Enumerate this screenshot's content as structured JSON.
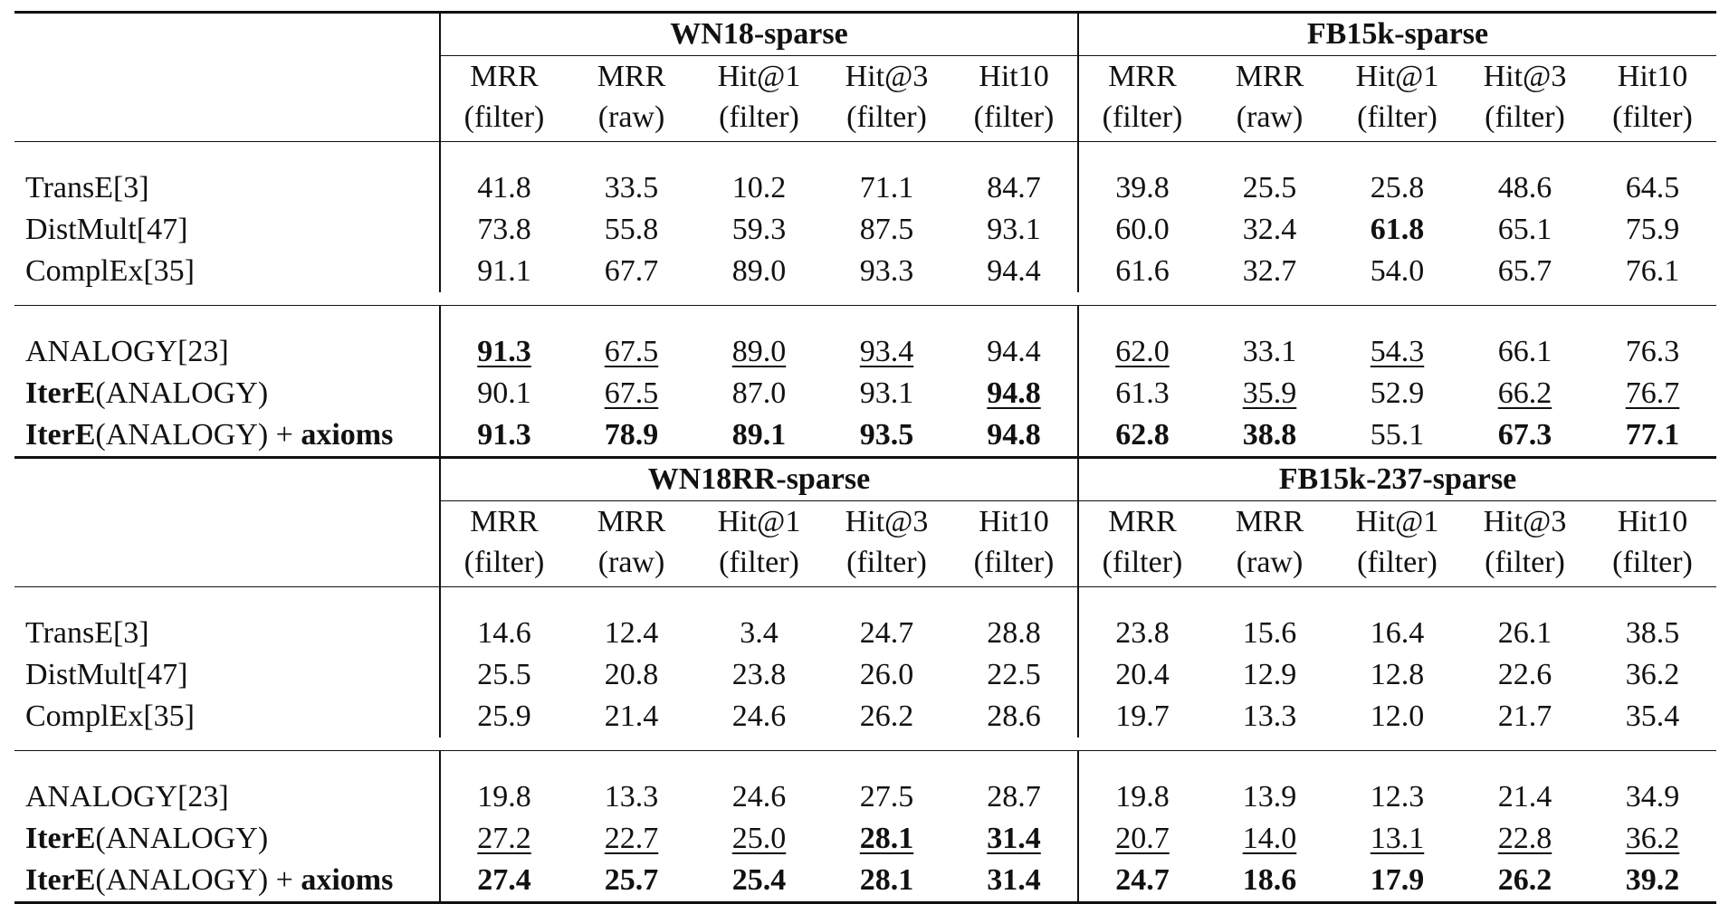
{
  "tables": [
    {
      "group_left": "WN18-sparse",
      "group_right": "FB15k-sparse",
      "columns": [
        {
          "metric": "MRR",
          "setting": "(filter)"
        },
        {
          "metric": "MRR",
          "setting": "(raw)"
        },
        {
          "metric": "Hit@1",
          "setting": "(filter)"
        },
        {
          "metric": "Hit@3",
          "setting": "(filter)"
        },
        {
          "metric": "Hit10",
          "setting": "(filter)"
        },
        {
          "metric": "MRR",
          "setting": "(filter)"
        },
        {
          "metric": "MRR",
          "setting": "(raw)"
        },
        {
          "metric": "Hit@1",
          "setting": "(filter)"
        },
        {
          "metric": "Hit@3",
          "setting": "(filter)"
        },
        {
          "metric": "Hit10",
          "setting": "(filter)"
        }
      ],
      "rows": [
        {
          "method": "TransE[3]",
          "values": [
            "41.8",
            "33.5",
            "10.2",
            "71.1",
            "84.7",
            "39.8",
            "25.5",
            "25.8",
            "48.6",
            "64.5"
          ]
        },
        {
          "method": "DistMult[47]",
          "values": [
            "73.8",
            "55.8",
            "59.3",
            "87.5",
            "93.1",
            "60.0",
            "32.4",
            "61.8",
            "65.1",
            "75.9"
          ]
        },
        {
          "method": "ComplEx[35]",
          "values": [
            "91.1",
            "67.7",
            "89.0",
            "93.3",
            "94.4",
            "61.6",
            "32.7",
            "54.0",
            "65.7",
            "76.1"
          ]
        },
        {
          "method": "ANALOGY[23]",
          "values": [
            "91.3",
            "67.5",
            "89.0",
            "93.4",
            "94.4",
            "62.0",
            "33.1",
            "54.3",
            "66.1",
            "76.3"
          ]
        },
        {
          "method_bold": "IterE",
          "method_rest": "(ANALOGY)",
          "values": [
            "90.1",
            "67.5",
            "87.0",
            "93.1",
            "94.8",
            "61.3",
            "35.9",
            "52.9",
            "66.2",
            "76.7"
          ]
        },
        {
          "method_bold": "IterE",
          "method_rest": "(ANALOGY) + ",
          "method_bold2": "axioms",
          "values": [
            "91.3",
            "78.9",
            "89.1",
            "93.5",
            "94.8",
            "62.8",
            "38.8",
            "55.1",
            "67.3",
            "77.1"
          ]
        }
      ]
    },
    {
      "group_left": "WN18RR-sparse",
      "group_right": "FB15k-237-sparse",
      "columns": [
        {
          "metric": "MRR",
          "setting": "(filter)"
        },
        {
          "metric": "MRR",
          "setting": "(raw)"
        },
        {
          "metric": "Hit@1",
          "setting": "(filter)"
        },
        {
          "metric": "Hit@3",
          "setting": "(filter)"
        },
        {
          "metric": "Hit10",
          "setting": "(filter)"
        },
        {
          "metric": "MRR",
          "setting": "(filter)"
        },
        {
          "metric": "MRR",
          "setting": "(raw)"
        },
        {
          "metric": "Hit@1",
          "setting": "(filter)"
        },
        {
          "metric": "Hit@3",
          "setting": "(filter)"
        },
        {
          "metric": "Hit10",
          "setting": "(filter)"
        }
      ],
      "rows": [
        {
          "method": "TransE[3]",
          "values": [
            "14.6",
            "12.4",
            "3.4",
            "24.7",
            "28.8",
            "23.8",
            "15.6",
            "16.4",
            "26.1",
            "38.5"
          ]
        },
        {
          "method": "DistMult[47]",
          "values": [
            "25.5",
            "20.8",
            "23.8",
            "26.0",
            "22.5",
            "20.4",
            "12.9",
            "12.8",
            "22.6",
            "36.2"
          ]
        },
        {
          "method": "ComplEx[35]",
          "values": [
            "25.9",
            "21.4",
            "24.6",
            "26.2",
            "28.6",
            "19.7",
            "13.3",
            "12.0",
            "21.7",
            "35.4"
          ]
        },
        {
          "method": "ANALOGY[23]",
          "values": [
            "19.8",
            "13.3",
            "24.6",
            "27.5",
            "28.7",
            "19.8",
            "13.9",
            "12.3",
            "21.4",
            "34.9"
          ]
        },
        {
          "method_bold": "IterE",
          "method_rest": "(ANALOGY)",
          "values": [
            "27.2",
            "22.7",
            "25.0",
            "28.1",
            "31.4",
            "20.7",
            "14.0",
            "13.1",
            "22.8",
            "36.2"
          ]
        },
        {
          "method_bold": "IterE",
          "method_rest": "(ANALOGY) + ",
          "method_bold2": "axioms",
          "values": [
            "27.4",
            "25.7",
            "25.4",
            "28.1",
            "31.4",
            "24.7",
            "18.6",
            "17.9",
            "26.2",
            "39.2"
          ]
        }
      ]
    }
  ],
  "emphasis": {
    "bold": [
      "0.3.0",
      "0.4.4",
      "0.5.0",
      "0.5.1",
      "0.5.2",
      "0.5.3",
      "0.5.4",
      "0.5.5",
      "0.5.6",
      "0.5.8",
      "0.5.9",
      "0.1.7",
      "1.4.3",
      "1.4.4",
      "1.5.0",
      "1.5.1",
      "1.5.2",
      "1.5.3",
      "1.5.4",
      "1.5.5",
      "1.5.6",
      "1.5.7",
      "1.5.8",
      "1.5.9"
    ],
    "underline": [
      "0.3.0",
      "0.3.1",
      "0.3.2",
      "0.3.3",
      "0.3.5",
      "0.3.7",
      "0.4.1",
      "0.4.4",
      "0.4.6",
      "0.4.8",
      "0.4.9",
      "1.4.0",
      "1.4.1",
      "1.4.2",
      "1.4.3",
      "1.4.4",
      "1.4.5",
      "1.4.6",
      "1.4.7",
      "1.4.8",
      "1.4.9"
    ]
  }
}
